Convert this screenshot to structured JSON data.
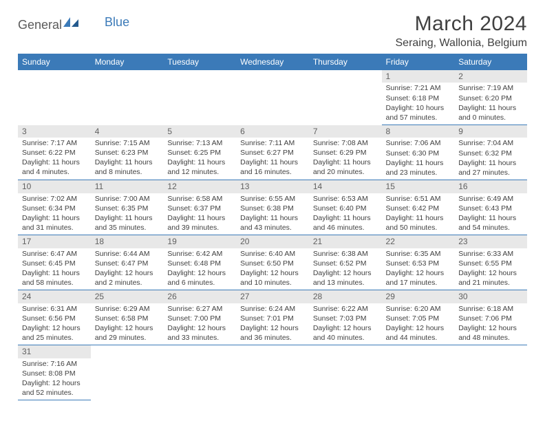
{
  "logo": {
    "text1": "General",
    "text2": "Blue"
  },
  "title": "March 2024",
  "location": "Seraing, Wallonia, Belgium",
  "colors": {
    "header_bg": "#3b7ab8",
    "header_text": "#ffffff",
    "daynum_bg": "#e8e8e8",
    "border": "#3b7ab8",
    "text": "#404040",
    "logo_gray": "#5a5a5a",
    "logo_blue": "#3b7ab8"
  },
  "weekdays": [
    "Sunday",
    "Monday",
    "Tuesday",
    "Wednesday",
    "Thursday",
    "Friday",
    "Saturday"
  ],
  "weeks": [
    [
      null,
      null,
      null,
      null,
      null,
      {
        "n": "1",
        "sunrise": "7:21 AM",
        "sunset": "6:18 PM",
        "daylight": "10 hours and 57 minutes."
      },
      {
        "n": "2",
        "sunrise": "7:19 AM",
        "sunset": "6:20 PM",
        "daylight": "11 hours and 0 minutes."
      }
    ],
    [
      {
        "n": "3",
        "sunrise": "7:17 AM",
        "sunset": "6:22 PM",
        "daylight": "11 hours and 4 minutes."
      },
      {
        "n": "4",
        "sunrise": "7:15 AM",
        "sunset": "6:23 PM",
        "daylight": "11 hours and 8 minutes."
      },
      {
        "n": "5",
        "sunrise": "7:13 AM",
        "sunset": "6:25 PM",
        "daylight": "11 hours and 12 minutes."
      },
      {
        "n": "6",
        "sunrise": "7:11 AM",
        "sunset": "6:27 PM",
        "daylight": "11 hours and 16 minutes."
      },
      {
        "n": "7",
        "sunrise": "7:08 AM",
        "sunset": "6:29 PM",
        "daylight": "11 hours and 20 minutes."
      },
      {
        "n": "8",
        "sunrise": "7:06 AM",
        "sunset": "6:30 PM",
        "daylight": "11 hours and 23 minutes."
      },
      {
        "n": "9",
        "sunrise": "7:04 AM",
        "sunset": "6:32 PM",
        "daylight": "11 hours and 27 minutes."
      }
    ],
    [
      {
        "n": "10",
        "sunrise": "7:02 AM",
        "sunset": "6:34 PM",
        "daylight": "11 hours and 31 minutes."
      },
      {
        "n": "11",
        "sunrise": "7:00 AM",
        "sunset": "6:35 PM",
        "daylight": "11 hours and 35 minutes."
      },
      {
        "n": "12",
        "sunrise": "6:58 AM",
        "sunset": "6:37 PM",
        "daylight": "11 hours and 39 minutes."
      },
      {
        "n": "13",
        "sunrise": "6:55 AM",
        "sunset": "6:38 PM",
        "daylight": "11 hours and 43 minutes."
      },
      {
        "n": "14",
        "sunrise": "6:53 AM",
        "sunset": "6:40 PM",
        "daylight": "11 hours and 46 minutes."
      },
      {
        "n": "15",
        "sunrise": "6:51 AM",
        "sunset": "6:42 PM",
        "daylight": "11 hours and 50 minutes."
      },
      {
        "n": "16",
        "sunrise": "6:49 AM",
        "sunset": "6:43 PM",
        "daylight": "11 hours and 54 minutes."
      }
    ],
    [
      {
        "n": "17",
        "sunrise": "6:47 AM",
        "sunset": "6:45 PM",
        "daylight": "11 hours and 58 minutes."
      },
      {
        "n": "18",
        "sunrise": "6:44 AM",
        "sunset": "6:47 PM",
        "daylight": "12 hours and 2 minutes."
      },
      {
        "n": "19",
        "sunrise": "6:42 AM",
        "sunset": "6:48 PM",
        "daylight": "12 hours and 6 minutes."
      },
      {
        "n": "20",
        "sunrise": "6:40 AM",
        "sunset": "6:50 PM",
        "daylight": "12 hours and 10 minutes."
      },
      {
        "n": "21",
        "sunrise": "6:38 AM",
        "sunset": "6:52 PM",
        "daylight": "12 hours and 13 minutes."
      },
      {
        "n": "22",
        "sunrise": "6:35 AM",
        "sunset": "6:53 PM",
        "daylight": "12 hours and 17 minutes."
      },
      {
        "n": "23",
        "sunrise": "6:33 AM",
        "sunset": "6:55 PM",
        "daylight": "12 hours and 21 minutes."
      }
    ],
    [
      {
        "n": "24",
        "sunrise": "6:31 AM",
        "sunset": "6:56 PM",
        "daylight": "12 hours and 25 minutes."
      },
      {
        "n": "25",
        "sunrise": "6:29 AM",
        "sunset": "6:58 PM",
        "daylight": "12 hours and 29 minutes."
      },
      {
        "n": "26",
        "sunrise": "6:27 AM",
        "sunset": "7:00 PM",
        "daylight": "12 hours and 33 minutes."
      },
      {
        "n": "27",
        "sunrise": "6:24 AM",
        "sunset": "7:01 PM",
        "daylight": "12 hours and 36 minutes."
      },
      {
        "n": "28",
        "sunrise": "6:22 AM",
        "sunset": "7:03 PM",
        "daylight": "12 hours and 40 minutes."
      },
      {
        "n": "29",
        "sunrise": "6:20 AM",
        "sunset": "7:05 PM",
        "daylight": "12 hours and 44 minutes."
      },
      {
        "n": "30",
        "sunrise": "6:18 AM",
        "sunset": "7:06 PM",
        "daylight": "12 hours and 48 minutes."
      }
    ],
    [
      {
        "n": "31",
        "sunrise": "7:16 AM",
        "sunset": "8:08 PM",
        "daylight": "12 hours and 52 minutes."
      },
      null,
      null,
      null,
      null,
      null,
      null
    ]
  ],
  "labels": {
    "sunrise": "Sunrise:",
    "sunset": "Sunset:",
    "daylight": "Daylight:"
  }
}
